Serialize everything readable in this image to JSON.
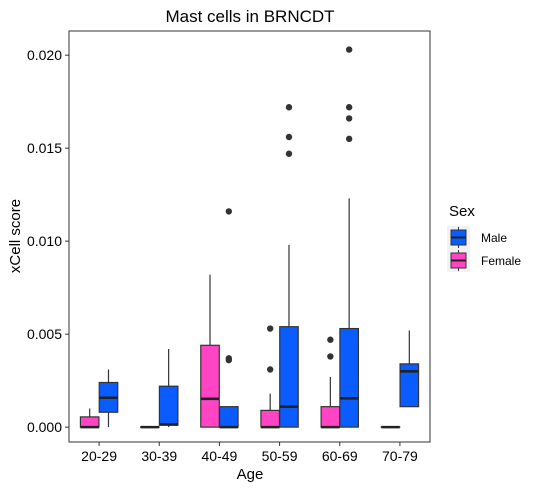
{
  "chart_data": {
    "type": "boxplot",
    "title": "Mast cells in BRNCDT",
    "xlabel": "Age",
    "ylabel": "xCell score",
    "categories": [
      "20-29",
      "30-39",
      "40-49",
      "50-59",
      "60-69",
      "70-79"
    ],
    "yticks": [
      "0.000",
      "0.005",
      "0.010",
      "0.015",
      "0.020"
    ],
    "ylim": [
      -0.0008,
      0.0213
    ],
    "grid": false,
    "legend": {
      "title": "Sex",
      "position": "right",
      "entries": [
        {
          "name": "Male",
          "color": "#0a5cff"
        },
        {
          "name": "Female",
          "color": "#ff45c4"
        }
      ]
    },
    "series": [
      {
        "name": "Female",
        "color": "#ff45c4",
        "boxes": [
          {
            "min": 0.0,
            "q1": 0.0,
            "median": 0.0,
            "q3": 0.00055,
            "max": 0.001,
            "outliers": []
          },
          {
            "min": 0.0,
            "q1": 0.0,
            "median": 0.0,
            "q3": 0.0,
            "max": 0.0,
            "outliers": []
          },
          {
            "min": 0.0,
            "q1": 0.0,
            "median": 0.00152,
            "q3": 0.0044,
            "max": 0.0082,
            "outliers": []
          },
          {
            "min": 0.0,
            "q1": 0.0,
            "median": 0.0,
            "q3": 0.0009,
            "max": 0.0018,
            "outliers": [
              0.0031,
              0.0053
            ]
          },
          {
            "min": 0.0,
            "q1": 0.0,
            "median": 0.0,
            "q3": 0.0011,
            "max": 0.0027,
            "outliers": [
              0.0038,
              0.0047
            ]
          },
          {
            "min": 0.0,
            "q1": 0.0,
            "median": 0.0,
            "q3": 0.0,
            "max": 0.0,
            "outliers": []
          }
        ]
      },
      {
        "name": "Male",
        "color": "#0a5cff",
        "boxes": [
          {
            "min": 0.0,
            "q1": 0.0008,
            "median": 0.00158,
            "q3": 0.0024,
            "max": 0.0031,
            "outliers": []
          },
          {
            "min": 0.0,
            "q1": 0.0001,
            "median": 0.00015,
            "q3": 0.0022,
            "max": 0.0042,
            "outliers": []
          },
          {
            "min": 0.0,
            "q1": 0.0,
            "median": 0.0,
            "q3": 0.0011,
            "max": 0.0011,
            "outliers": [
              0.0036,
              0.0037,
              0.0116
            ]
          },
          {
            "min": 0.0,
            "q1": 0.0,
            "median": 0.0011,
            "q3": 0.0054,
            "max": 0.0098,
            "outliers": [
              0.0147,
              0.0156,
              0.0172
            ]
          },
          {
            "min": 0.0,
            "q1": 0.0,
            "median": 0.00155,
            "q3": 0.0053,
            "max": 0.0123,
            "outliers": [
              0.0155,
              0.0166,
              0.0172,
              0.0203
            ]
          },
          {
            "min": 0.0011,
            "q1": 0.0011,
            "median": 0.003,
            "q3": 0.0034,
            "max": 0.0052,
            "outliers": []
          }
        ]
      }
    ]
  }
}
